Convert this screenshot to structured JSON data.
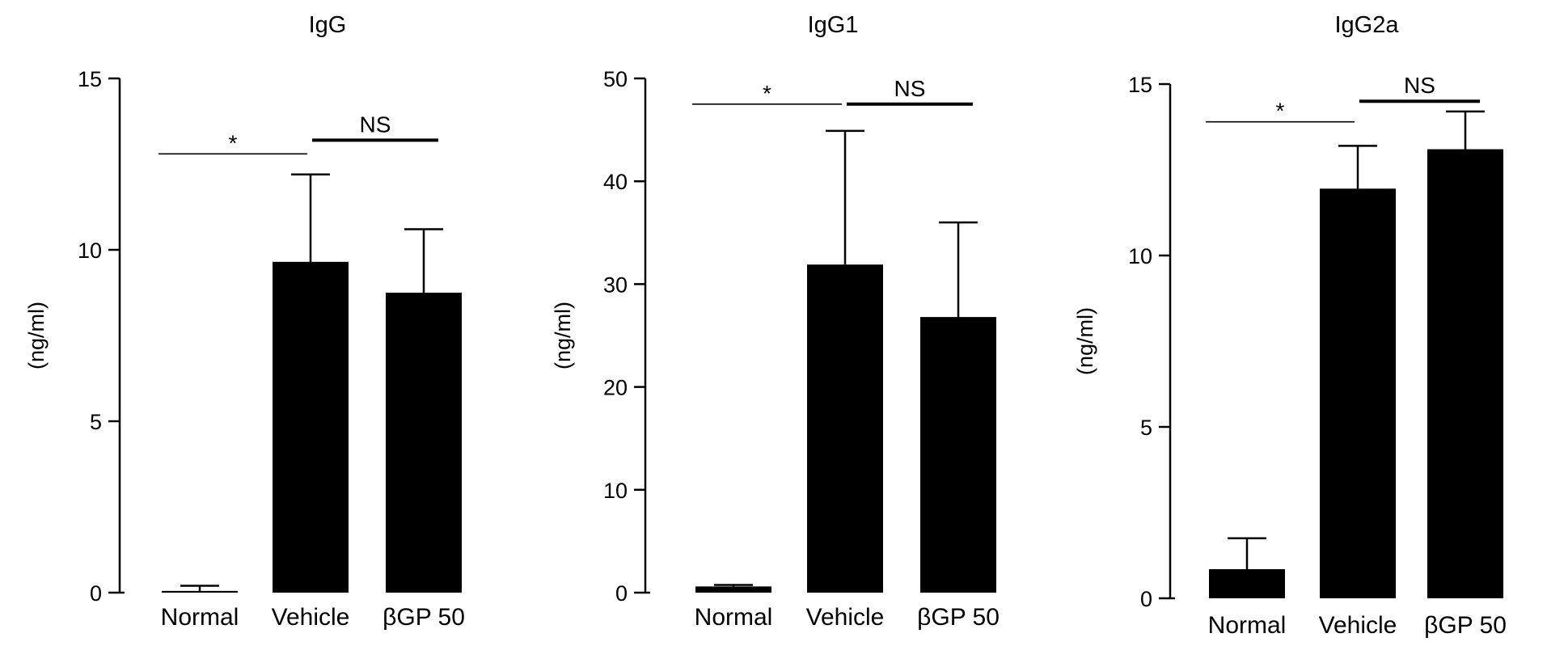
{
  "chart_data": [
    {
      "type": "bar",
      "title": "IgG",
      "ylabel": "(ng/ml)",
      "xlabel": "",
      "categories": [
        "Normal",
        "Vehicle",
        "βGP 50"
      ],
      "values": [
        0.05,
        9.65,
        8.75
      ],
      "errors": [
        0.15,
        2.55,
        1.85
      ],
      "ylim": [
        0,
        15
      ],
      "yticks": [
        "0",
        "5",
        "10",
        "15"
      ],
      "tick_values": [
        0,
        5,
        10,
        15
      ],
      "significance": [
        {
          "from": 0,
          "to": 1,
          "label": "*",
          "y": 12.8,
          "weight": "thin"
        },
        {
          "from": 1,
          "to": 2,
          "label": "NS",
          "y": 13.2,
          "weight": "bold"
        }
      ]
    },
    {
      "type": "bar",
      "title": "IgG1",
      "ylabel": "(ng/ml)",
      "xlabel": "",
      "categories": [
        "Normal",
        "Vehicle",
        "βGP 50"
      ],
      "values": [
        0.6,
        31.9,
        26.8
      ],
      "errors": [
        0.15,
        13.0,
        9.2
      ],
      "ylim": [
        0,
        50
      ],
      "yticks": [
        "0",
        "10",
        "20",
        "30",
        "40",
        "50"
      ],
      "tick_values": [
        0,
        10,
        20,
        30,
        40,
        50
      ],
      "significance": [
        {
          "from": 0,
          "to": 1,
          "label": "*",
          "y": 47.5,
          "weight": "thin"
        },
        {
          "from": 1,
          "to": 2,
          "label": "NS",
          "y": 47.5,
          "weight": "bold"
        }
      ]
    },
    {
      "type": "bar",
      "title": "IgG2a",
      "ylabel": "(ng/ml)",
      "xlabel": "",
      "categories": [
        "Normal",
        "Vehicle",
        "βGP 50"
      ],
      "values": [
        0.85,
        11.95,
        13.1
      ],
      "errors": [
        0.9,
        1.25,
        1.1
      ],
      "ylim": [
        0,
        15
      ],
      "yticks": [
        "0",
        "5",
        "10",
        "15"
      ],
      "tick_values": [
        0,
        5,
        10,
        15
      ],
      "significance": [
        {
          "from": 0,
          "to": 1,
          "label": "*",
          "y": 13.9,
          "weight": "thin"
        },
        {
          "from": 1,
          "to": 2,
          "label": "NS",
          "y": 14.5,
          "weight": "bold"
        }
      ]
    }
  ]
}
